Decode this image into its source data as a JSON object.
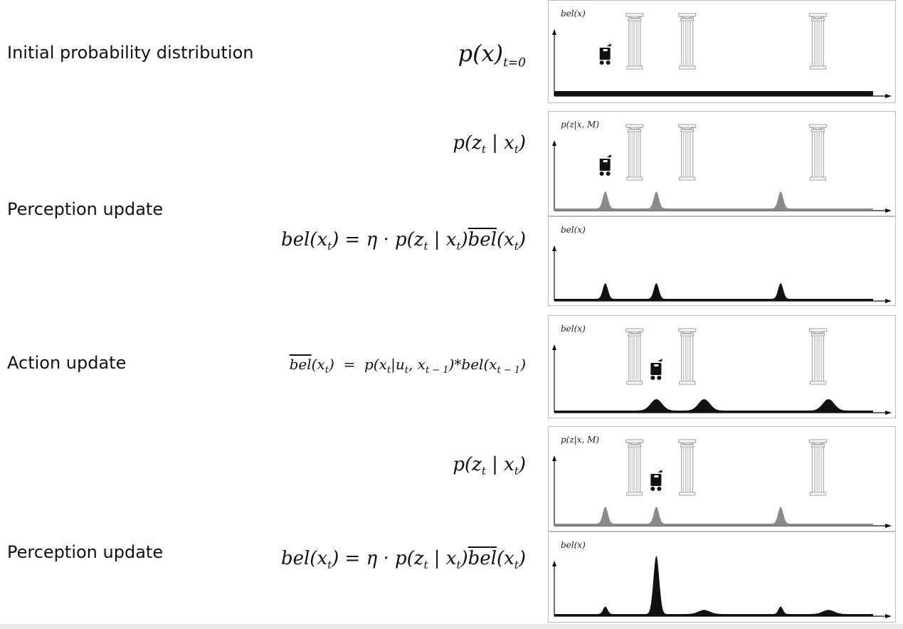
{
  "rows": [
    {
      "label": "Initial probability distribution"
    },
    {
      "label": "Perception update"
    },
    {
      "label": "Action update"
    },
    {
      "label": "Perception update"
    }
  ],
  "formulas": {
    "initial": {
      "p": "p(x)",
      "sub": "t=0"
    },
    "likelihood": "p(z|x)",
    "bel_update": "bel(x) = η · p(z|x) bel(x)",
    "action": "bel(x) = p(x|u, x)*bel(x)"
  },
  "panel_labels": {
    "bel": "bel(x)",
    "likelihood": "p(z|x, M)"
  },
  "panels": [
    {
      "name": "initial-belief",
      "axis_label": "bel(x)",
      "robot_x": 0.16,
      "pillars": true,
      "curve": "uniform",
      "fill": "#111111"
    },
    {
      "name": "likelihood-1",
      "axis_label": "p(z|x, M)",
      "robot_x": 0.16,
      "pillars": true,
      "curve": "sensor",
      "fill": "#8a8a8a",
      "peaks": [
        0.16,
        0.32,
        0.71
      ]
    },
    {
      "name": "posterior-1",
      "axis_label": "bel(x)",
      "pillars": false,
      "curve": "posterior1",
      "fill": "#111111",
      "peaks": [
        0.16,
        0.32,
        0.71
      ]
    },
    {
      "name": "predicted-belief",
      "axis_label": "bel(x)",
      "robot_x": 0.32,
      "pillars": true,
      "curve": "shifted",
      "fill": "#111111",
      "peaks": [
        0.32,
        0.47,
        0.86
      ]
    },
    {
      "name": "likelihood-2",
      "axis_label": "p(z|x, M)",
      "robot_x": 0.32,
      "pillars": true,
      "curve": "sensor",
      "fill": "#8a8a8a",
      "peaks": [
        0.16,
        0.32,
        0.71
      ]
    },
    {
      "name": "posterior-2",
      "axis_label": "bel(x)",
      "pillars": false,
      "curve": "posterior2",
      "fill": "#111111",
      "peaks": [
        0.16,
        0.32,
        0.47,
        0.71,
        0.86
      ]
    }
  ],
  "colors": {
    "belief": "#111111",
    "likelihood": "#8a8a8a",
    "pillar": "#9a9a9a",
    "frame": "#bdbdbd"
  },
  "icons": [
    "robot-icon",
    "pillar-icon",
    "arrow-right-icon",
    "arrow-up-icon"
  ]
}
